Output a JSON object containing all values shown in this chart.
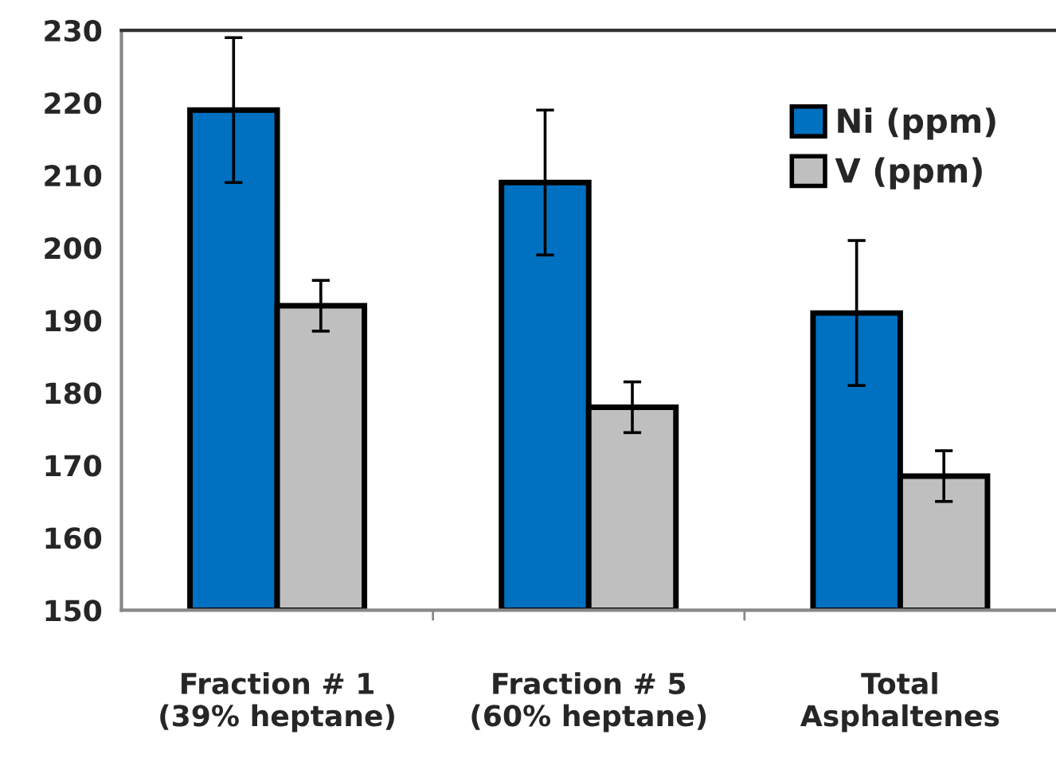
{
  "chart_data": {
    "type": "bar",
    "categories": [
      "Fraction # 1\n(39% heptane)",
      "Fraction # 5\n(60% heptane)",
      "Total\nAsphaltenes"
    ],
    "series": [
      {
        "name": "Ni (ppm)",
        "color": "#0070c0",
        "values": [
          219,
          209,
          191
        ],
        "errors": [
          10,
          10,
          10
        ]
      },
      {
        "name": "V (ppm)",
        "color": "#bfbfbf",
        "values": [
          192,
          178,
          168.5
        ],
        "errors": [
          3.5,
          3.5,
          3.5
        ]
      }
    ],
    "ylim": [
      150,
      230
    ],
    "yticks": [
      150,
      160,
      170,
      180,
      190,
      200,
      210,
      220,
      230
    ],
    "grid": false,
    "legend": "top right"
  }
}
